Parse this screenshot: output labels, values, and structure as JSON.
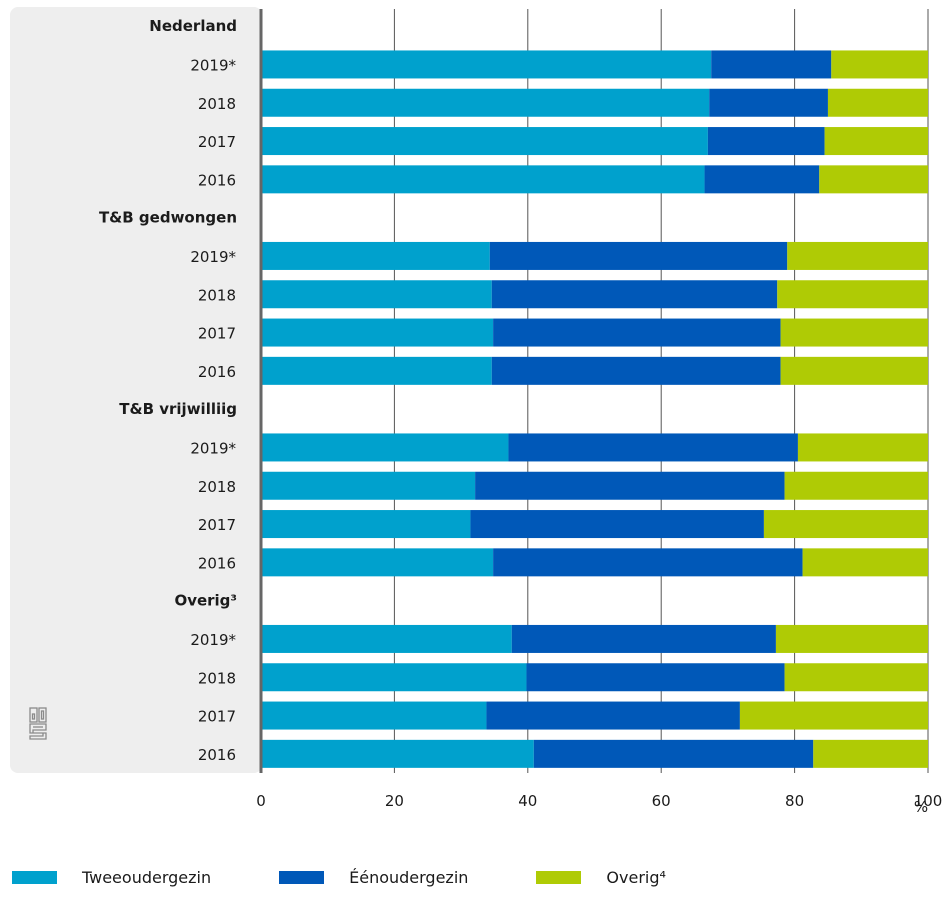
{
  "chart_data": {
    "type": "bar",
    "orientation": "horizontal",
    "stacked": true,
    "x_unit_label": "%",
    "xlim": [
      0,
      100
    ],
    "x_ticks": [
      0,
      20,
      40,
      60,
      80,
      100
    ],
    "grid": true,
    "legend_placement": "bottom",
    "series": [
      {
        "name": "Tweeoudergezin",
        "color": "#00a1cd"
      },
      {
        "name": "Éénoudergezin",
        "color": "#0058b8"
      },
      {
        "name": "Overig⁴",
        "color": "#afcb05"
      }
    ],
    "groups": [
      {
        "label": "Nederland",
        "rows": [
          {
            "label": "2019*",
            "values": [
              67.5,
              18.0,
              14.5
            ]
          },
          {
            "label": "2018",
            "values": [
              67.2,
              17.8,
              15.0
            ]
          },
          {
            "label": "2017",
            "values": [
              67.0,
              17.5,
              15.5
            ]
          },
          {
            "label": "2016",
            "values": [
              66.5,
              17.2,
              16.3
            ]
          }
        ]
      },
      {
        "label": "T&B gedwongen",
        "rows": [
          {
            "label": "2019*",
            "values": [
              34.3,
              44.6,
              21.1
            ]
          },
          {
            "label": "2018",
            "values": [
              34.6,
              42.8,
              22.6
            ]
          },
          {
            "label": "2017",
            "values": [
              34.8,
              43.1,
              22.1
            ]
          },
          {
            "label": "2016",
            "values": [
              34.6,
              43.3,
              22.1
            ]
          }
        ]
      },
      {
        "label": "T&B vrijwilliig",
        "rows": [
          {
            "label": "2019*",
            "values": [
              37.1,
              43.4,
              19.5
            ]
          },
          {
            "label": "2018",
            "values": [
              32.1,
              46.4,
              21.5
            ]
          },
          {
            "label": "2017",
            "values": [
              31.4,
              44.0,
              24.6
            ]
          },
          {
            "label": "2016",
            "values": [
              34.8,
              46.4,
              18.8
            ]
          }
        ]
      },
      {
        "label": "Overig³",
        "rows": [
          {
            "label": "2019*",
            "values": [
              37.6,
              39.6,
              22.8
            ]
          },
          {
            "label": "2018",
            "values": [
              39.8,
              38.7,
              21.5
            ]
          },
          {
            "label": "2017",
            "values": [
              33.8,
              38.0,
              28.2
            ]
          },
          {
            "label": "2016",
            "values": [
              40.9,
              41.9,
              17.2
            ]
          }
        ]
      }
    ]
  },
  "logo": {
    "name": "cbs-logo-icon"
  }
}
